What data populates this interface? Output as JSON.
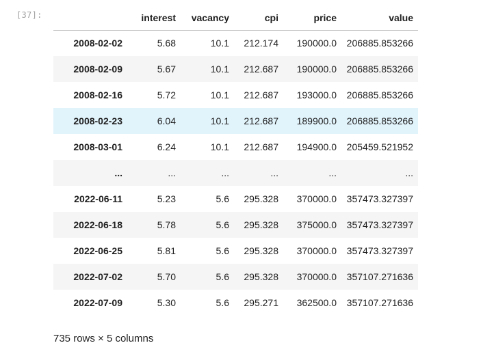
{
  "cell": {
    "prompt": "[37]:"
  },
  "dataframe": {
    "columns": [
      "interest",
      "vacancy",
      "cpi",
      "price",
      "value"
    ],
    "rows": [
      {
        "index": "2008-02-02",
        "values": [
          "5.68",
          "10.1",
          "212.174",
          "190000.0",
          "206885.853266"
        ]
      },
      {
        "index": "2008-02-09",
        "values": [
          "5.67",
          "10.1",
          "212.687",
          "190000.0",
          "206885.853266"
        ]
      },
      {
        "index": "2008-02-16",
        "values": [
          "5.72",
          "10.1",
          "212.687",
          "193000.0",
          "206885.853266"
        ]
      },
      {
        "index": "2008-02-23",
        "values": [
          "6.04",
          "10.1",
          "212.687",
          "189900.0",
          "206885.853266"
        ]
      },
      {
        "index": "2008-03-01",
        "values": [
          "6.24",
          "10.1",
          "212.687",
          "194900.0",
          "205459.521952"
        ]
      },
      {
        "index": "...",
        "values": [
          "...",
          "...",
          "...",
          "...",
          "..."
        ]
      },
      {
        "index": "2022-06-11",
        "values": [
          "5.23",
          "5.6",
          "295.328",
          "370000.0",
          "357473.327397"
        ]
      },
      {
        "index": "2022-06-18",
        "values": [
          "5.78",
          "5.6",
          "295.328",
          "375000.0",
          "357473.327397"
        ]
      },
      {
        "index": "2022-06-25",
        "values": [
          "5.81",
          "5.6",
          "295.328",
          "370000.0",
          "357473.327397"
        ]
      },
      {
        "index": "2022-07-02",
        "values": [
          "5.70",
          "5.6",
          "295.328",
          "370000.0",
          "357107.271636"
        ]
      },
      {
        "index": "2022-07-09",
        "values": [
          "5.30",
          "5.6",
          "295.271",
          "362500.0",
          "357107.271636"
        ]
      }
    ],
    "hovered_row": 3,
    "summary": "735 rows × 5 columns"
  }
}
